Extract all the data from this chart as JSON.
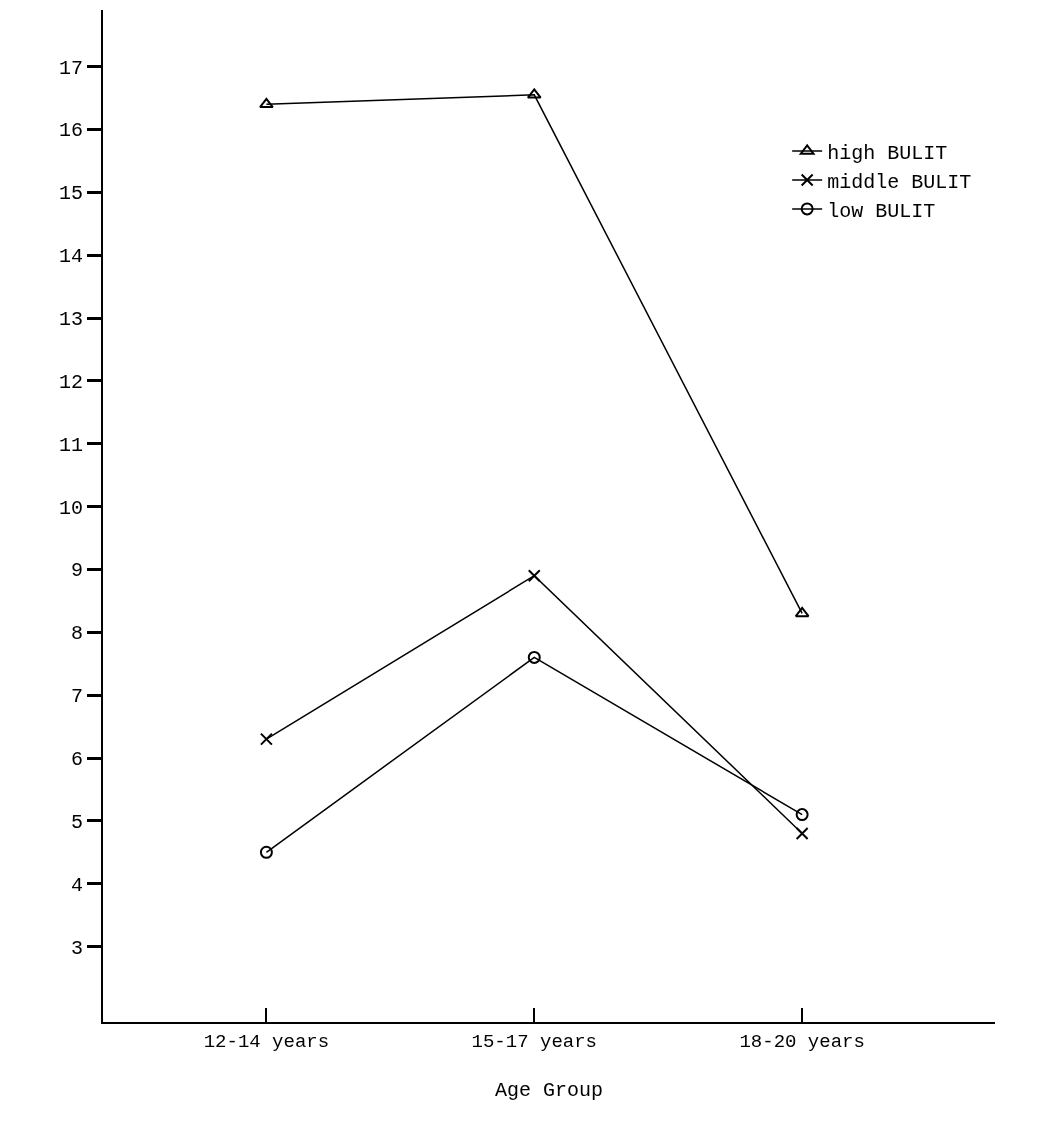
{
  "chart_data": {
    "type": "line",
    "xlabel": "Age Group",
    "categories": [
      "12-14 years",
      "15-17 years",
      "18-20 years"
    ],
    "series": [
      {
        "name": "high BULIT",
        "color": "#000000",
        "marker": "triangle",
        "values": [
          16.4,
          16.55,
          8.3
        ]
      },
      {
        "name": "middle BULIT",
        "color": "#000000",
        "marker": "cross",
        "values": [
          6.3,
          8.9,
          4.8
        ]
      },
      {
        "name": "low BULIT",
        "color": "#000000",
        "marker": "circle",
        "values": [
          4.5,
          7.6,
          5.1
        ]
      }
    ],
    "ylim": [
      1.8,
      17.9
    ],
    "yticks": [
      3,
      4,
      5,
      6,
      7,
      8,
      9,
      10,
      11,
      12,
      13,
      14,
      15,
      16,
      17
    ],
    "grid": false,
    "legend": "top right",
    "line_style": "solid"
  }
}
